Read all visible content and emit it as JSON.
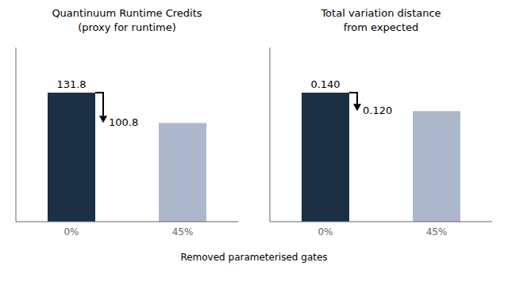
{
  "xlabel": "Removed parameterised gates",
  "chart_data": [
    {
      "type": "bar",
      "title": "Quantinuum Runtime Credits\n(proxy for runtime)",
      "categories": [
        "0%",
        "45%"
      ],
      "values": [
        131.8,
        100.8
      ],
      "value_labels": [
        "131.8",
        "100.8"
      ],
      "colors": [
        "#1b2f45",
        "#adb8ca"
      ],
      "ylim": [
        0,
        177.93
      ],
      "data_labels": true,
      "tick_labels": "x",
      "grid": false
    },
    {
      "type": "bar",
      "title": "Total variation distance\nfrom expected",
      "categories": [
        "0%",
        "45%"
      ],
      "values": [
        0.14,
        0.12
      ],
      "value_labels": [
        "0.140",
        "0.120"
      ],
      "colors": [
        "#1b2f45",
        "#adb8ca"
      ],
      "ylim": [
        0,
        0.189
      ],
      "data_labels": true,
      "tick_labels": "x",
      "grid": false
    }
  ]
}
